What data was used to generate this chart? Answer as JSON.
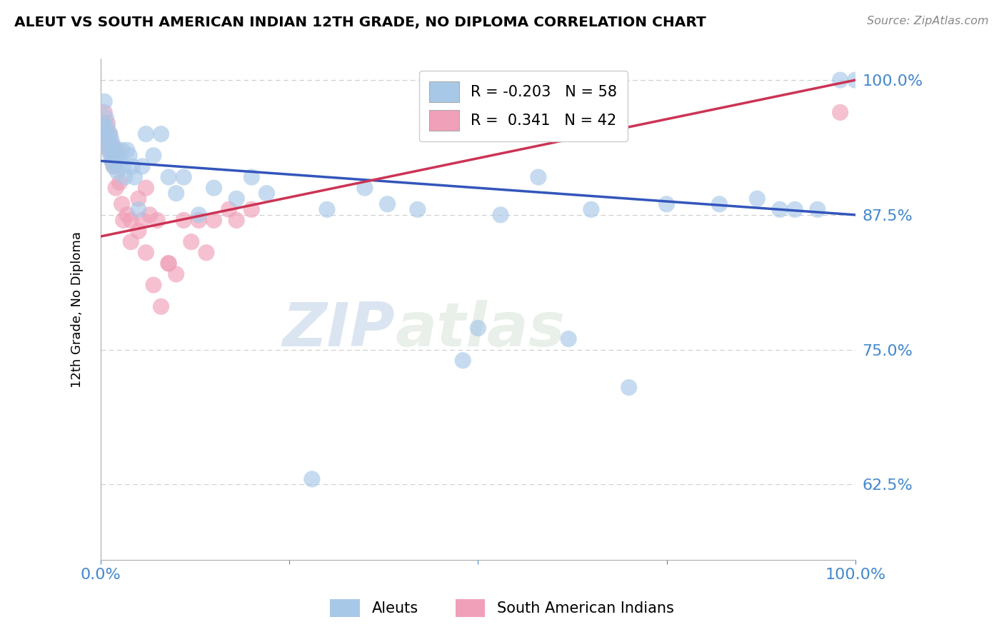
{
  "title": "ALEUT VS SOUTH AMERICAN INDIAN 12TH GRADE, NO DIPLOMA CORRELATION CHART",
  "source": "Source: ZipAtlas.com",
  "ylabel": "12th Grade, No Diploma",
  "xlim": [
    0.0,
    1.0
  ],
  "ylim": [
    0.555,
    1.02
  ],
  "yticks": [
    0.625,
    0.75,
    0.875,
    1.0
  ],
  "ytick_labels": [
    "62.5%",
    "75.0%",
    "87.5%",
    "100.0%"
  ],
  "xticks": [
    0.0,
    0.25,
    0.5,
    0.75,
    1.0
  ],
  "xtick_labels": [
    "0.0%",
    "",
    "",
    "",
    "100.0%"
  ],
  "aleuts_R": -0.203,
  "aleuts_N": 58,
  "sai_R": 0.341,
  "sai_N": 42,
  "aleut_color": "#a8c8e8",
  "sai_color": "#f0a0b8",
  "trend_aleut_color": "#3355bb",
  "trend_sai_color": "#cc3355",
  "aleuts_x": [
    0.003,
    0.005,
    0.006,
    0.007,
    0.008,
    0.009,
    0.01,
    0.011,
    0.012,
    0.013,
    0.014,
    0.015,
    0.016,
    0.017,
    0.018,
    0.02,
    0.022,
    0.025,
    0.028,
    0.03,
    0.032,
    0.035,
    0.038,
    0.042,
    0.045,
    0.05,
    0.055,
    0.06,
    0.07,
    0.08,
    0.09,
    0.1,
    0.11,
    0.13,
    0.15,
    0.18,
    0.2,
    0.22,
    0.28,
    0.3,
    0.35,
    0.38,
    0.42,
    0.48,
    0.5,
    0.53,
    0.58,
    0.62,
    0.65,
    0.7,
    0.75,
    0.82,
    0.87,
    0.9,
    0.92,
    0.95,
    0.98,
    1.0
  ],
  "aleuts_y": [
    0.96,
    0.98,
    0.95,
    0.965,
    0.94,
    0.955,
    0.945,
    0.935,
    0.95,
    0.93,
    0.945,
    0.925,
    0.94,
    0.92,
    0.935,
    0.93,
    0.915,
    0.925,
    0.935,
    0.92,
    0.91,
    0.935,
    0.93,
    0.92,
    0.91,
    0.88,
    0.92,
    0.95,
    0.93,
    0.95,
    0.91,
    0.895,
    0.91,
    0.875,
    0.9,
    0.89,
    0.91,
    0.895,
    0.63,
    0.88,
    0.9,
    0.885,
    0.88,
    0.74,
    0.77,
    0.875,
    0.91,
    0.76,
    0.88,
    0.715,
    0.885,
    0.885,
    0.89,
    0.88,
    0.88,
    0.88,
    1.0,
    1.0
  ],
  "sai_x": [
    0.003,
    0.005,
    0.007,
    0.008,
    0.009,
    0.01,
    0.011,
    0.012,
    0.014,
    0.015,
    0.016,
    0.018,
    0.02,
    0.022,
    0.025,
    0.028,
    0.03,
    0.035,
    0.04,
    0.05,
    0.06,
    0.07,
    0.08,
    0.09,
    0.1,
    0.12,
    0.14,
    0.05,
    0.06,
    0.09,
    0.11,
    0.13,
    0.15,
    0.17,
    0.18,
    0.2,
    0.04,
    0.055,
    0.065,
    0.075,
    0.62,
    0.98
  ],
  "sai_y": [
    0.96,
    0.97,
    0.95,
    0.94,
    0.96,
    0.945,
    0.935,
    0.95,
    0.94,
    0.925,
    0.935,
    0.92,
    0.9,
    0.935,
    0.905,
    0.885,
    0.87,
    0.875,
    0.85,
    0.86,
    0.84,
    0.81,
    0.79,
    0.83,
    0.82,
    0.85,
    0.84,
    0.89,
    0.9,
    0.83,
    0.87,
    0.87,
    0.87,
    0.88,
    0.87,
    0.88,
    0.87,
    0.87,
    0.875,
    0.87,
    0.97,
    0.97
  ],
  "watermark_zip": "ZIP",
  "watermark_atlas": "atlas",
  "background_color": "#ffffff",
  "grid_color": "#cccccc"
}
